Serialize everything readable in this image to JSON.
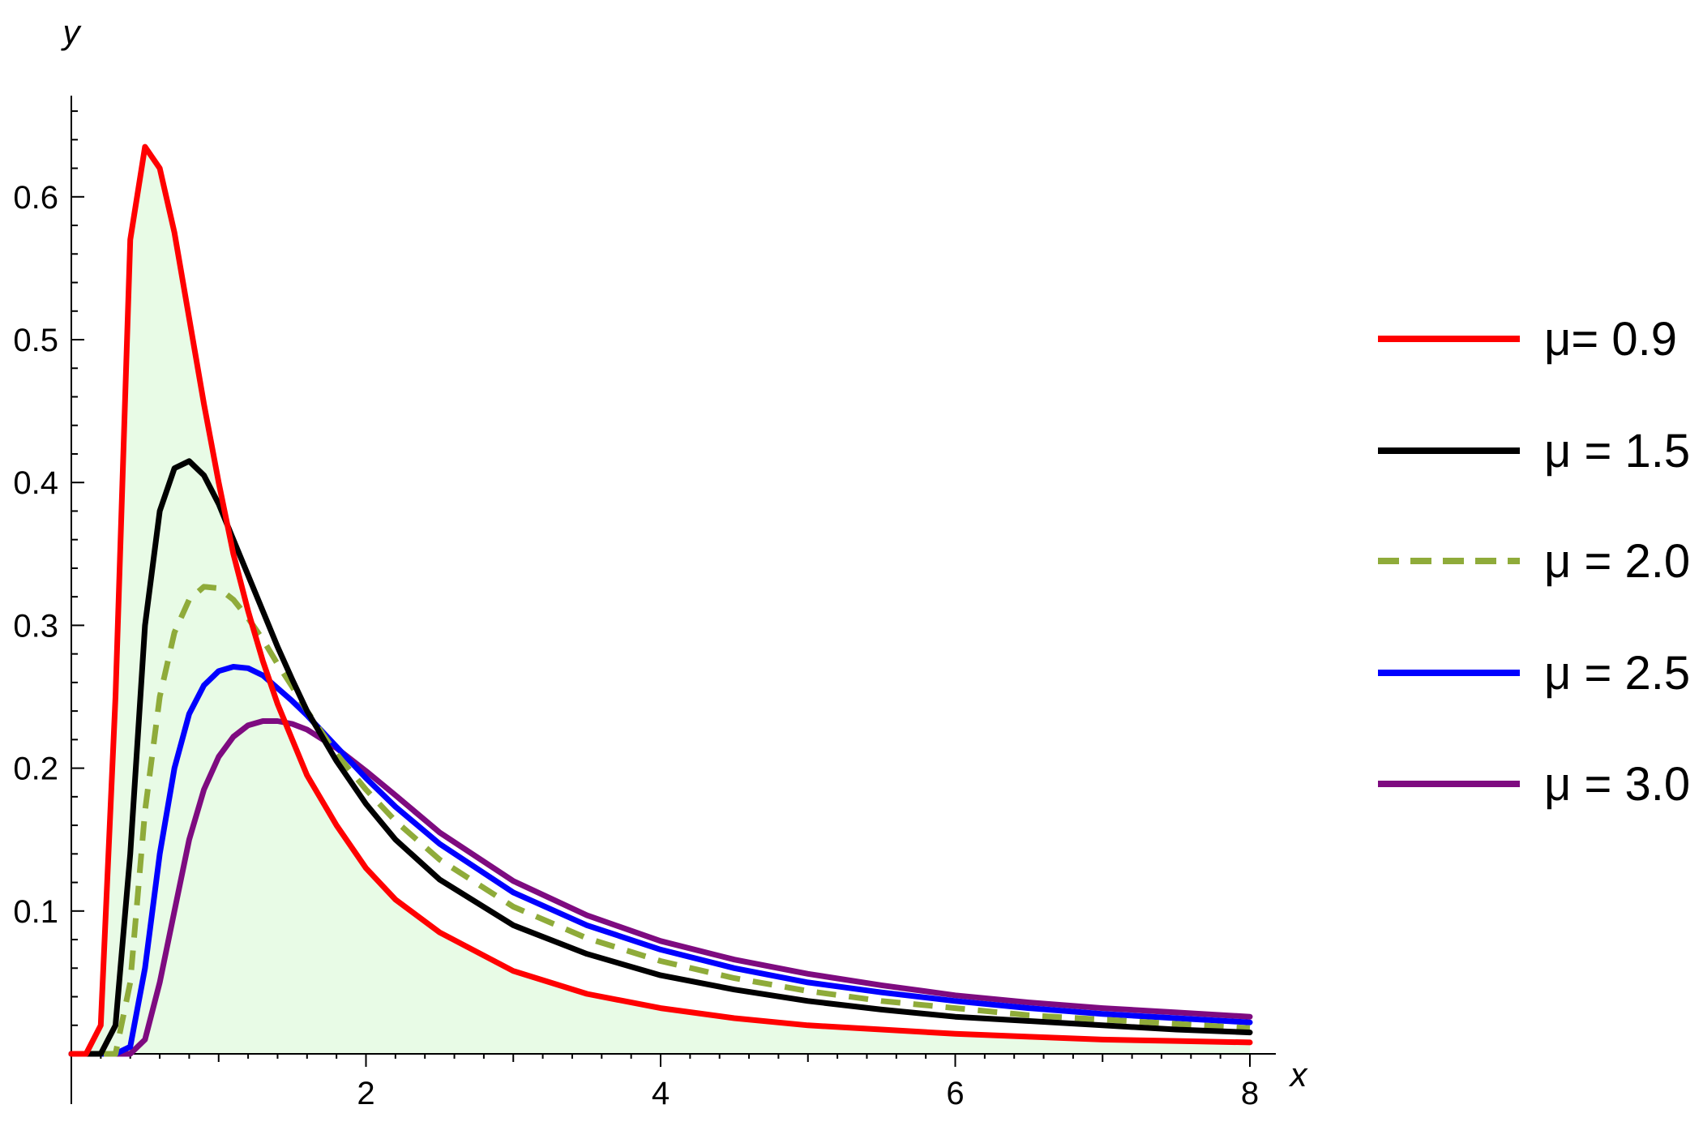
{
  "chart_data": {
    "type": "line",
    "xlabel": "x",
    "ylabel": "y",
    "xlim": [
      0,
      8
    ],
    "ylim": [
      0,
      0.67
    ],
    "x_ticks": [
      2,
      4,
      6,
      8
    ],
    "x_tick_labels": [
      "2",
      "4",
      "6",
      "8"
    ],
    "y_ticks": [
      0.1,
      0.2,
      0.3,
      0.4,
      0.5,
      0.6
    ],
    "y_tick_labels": [
      "0.1",
      "0.2",
      "0.3",
      "0.4",
      "0.5",
      "0.6"
    ],
    "grid": false,
    "legend_position": "right",
    "shaded_area": {
      "under_series": "μ= 0.9",
      "color": "#e8fbe6"
    },
    "x": [
      0,
      0.1,
      0.2,
      0.3,
      0.4,
      0.5,
      0.6,
      0.7,
      0.8,
      0.9,
      1.0,
      1.1,
      1.2,
      1.3,
      1.4,
      1.5,
      1.6,
      1.8,
      2.0,
      2.2,
      2.5,
      3.0,
      3.5,
      4.0,
      4.5,
      5.0,
      5.5,
      6.0,
      6.5,
      7.0,
      7.5,
      8.0
    ],
    "series": [
      {
        "name": "μ= 0.9",
        "color": "#ff0000",
        "dash": "solid",
        "values": [
          0,
          0.0,
          0.02,
          0.25,
          0.57,
          0.635,
          0.62,
          0.575,
          0.515,
          0.455,
          0.4,
          0.35,
          0.31,
          0.275,
          0.245,
          0.22,
          0.195,
          0.16,
          0.13,
          0.108,
          0.085,
          0.058,
          0.042,
          0.032,
          0.025,
          0.02,
          0.017,
          0.014,
          0.012,
          0.01,
          0.009,
          0.008
        ]
      },
      {
        "name": "μ = 1.5",
        "color": "#000000",
        "dash": "solid",
        "values": [
          0,
          0.0,
          0.0,
          0.02,
          0.14,
          0.3,
          0.38,
          0.41,
          0.415,
          0.405,
          0.385,
          0.36,
          0.335,
          0.31,
          0.285,
          0.262,
          0.24,
          0.205,
          0.175,
          0.15,
          0.122,
          0.09,
          0.07,
          0.055,
          0.045,
          0.037,
          0.031,
          0.026,
          0.023,
          0.02,
          0.017,
          0.015
        ]
      },
      {
        "name": "μ = 2.0",
        "color": "#8fab3a",
        "dash": "dashed",
        "values": [
          0,
          0.0,
          0.0,
          0.0,
          0.05,
          0.17,
          0.25,
          0.295,
          0.318,
          0.327,
          0.326,
          0.318,
          0.305,
          0.29,
          0.273,
          0.257,
          0.24,
          0.21,
          0.185,
          0.163,
          0.136,
          0.103,
          0.081,
          0.065,
          0.053,
          0.044,
          0.037,
          0.032,
          0.027,
          0.024,
          0.021,
          0.018
        ]
      },
      {
        "name": "μ = 2.5",
        "color": "#0000ff",
        "dash": "solid",
        "values": [
          0,
          0.0,
          0.0,
          0.0,
          0.005,
          0.06,
          0.14,
          0.2,
          0.238,
          0.258,
          0.268,
          0.271,
          0.27,
          0.265,
          0.256,
          0.247,
          0.237,
          0.215,
          0.193,
          0.173,
          0.147,
          0.113,
          0.09,
          0.073,
          0.06,
          0.05,
          0.043,
          0.037,
          0.032,
          0.028,
          0.025,
          0.022
        ]
      },
      {
        "name": "μ = 3.0",
        "color": "#7e0b80",
        "dash": "solid",
        "values": [
          0,
          0.0,
          0.0,
          0.0,
          0.0,
          0.01,
          0.05,
          0.1,
          0.15,
          0.185,
          0.208,
          0.222,
          0.23,
          0.233,
          0.233,
          0.231,
          0.227,
          0.214,
          0.198,
          0.181,
          0.155,
          0.121,
          0.097,
          0.079,
          0.066,
          0.056,
          0.048,
          0.041,
          0.036,
          0.032,
          0.029,
          0.026
        ]
      }
    ]
  }
}
